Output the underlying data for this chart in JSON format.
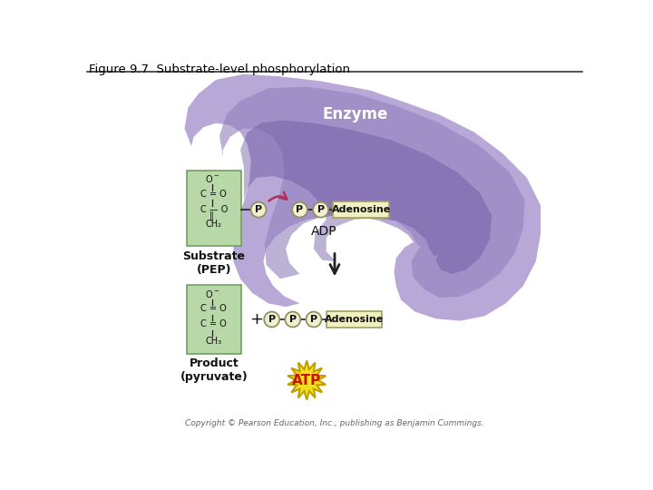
{
  "title": "Figure 9.7  Substrate-level phosphorylation",
  "copyright": "Copyright © Pearson Education, Inc., publishing as Benjamin Cummings.",
  "bg_color": "#ffffff",
  "enzyme_color_light": "#b8a8d8",
  "enzyme_color_mid": "#9080bc",
  "enzyme_color_dark": "#6a55a0",
  "green_box_color": "#b8d8a8",
  "green_box_edge": "#70a060",
  "phosphate_fill": "#f0f0d0",
  "phosphate_edge": "#909060",
  "adenosine_fill": "#f0f0c0",
  "adenosine_edge": "#a0a060",
  "arrow_curved_color": "#b03060",
  "arrow_main_color": "#222222",
  "atp_star_color": "#f0e020",
  "atp_star_edge": "#c0a000",
  "atp_text_color": "#cc1100",
  "enzyme_label": "Enzyme",
  "adp_label": "ADP",
  "substrate_label": "Substrate\n(PEP)",
  "product_label": "Product\n(pyruvate)",
  "adenosine_label": "Adenosine",
  "atp_label": "ATP"
}
